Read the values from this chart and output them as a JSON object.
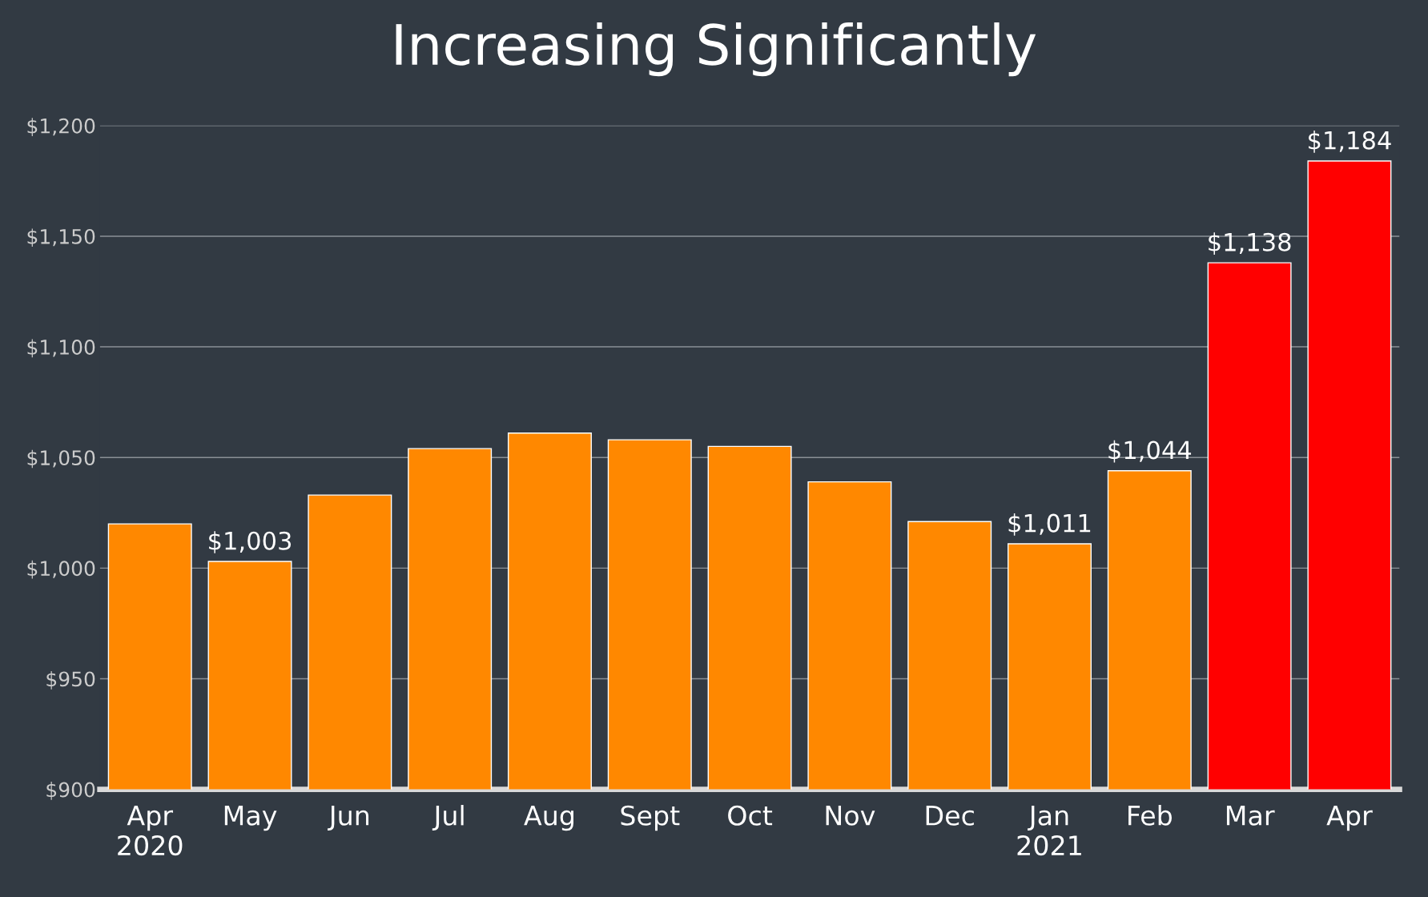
{
  "chart_data": {
    "type": "bar",
    "title": "Increasing Significantly",
    "categories": [
      "Apr\n2020",
      "May",
      "Jun",
      "Jul",
      "Aug",
      "Sept",
      "Oct",
      "Nov",
      "Dec",
      "Jan\n2021",
      "Feb",
      "Mar",
      "Apr"
    ],
    "values": [
      1020,
      1003,
      1033,
      1054,
      1061,
      1058,
      1055,
      1039,
      1021,
      1011,
      1044,
      1138,
      1184
    ],
    "colors": [
      "#ff8800",
      "#ff8800",
      "#ff8800",
      "#ff8800",
      "#ff8800",
      "#ff8800",
      "#ff8800",
      "#ff8800",
      "#ff8800",
      "#ff8800",
      "#ff8800",
      "#ff0000",
      "#ff0000"
    ],
    "value_labels": [
      null,
      "$1,003",
      null,
      null,
      null,
      null,
      null,
      null,
      null,
      "$1,011",
      "$1,044",
      "$1,138",
      "$1,184"
    ],
    "ylim": [
      900,
      1200
    ],
    "yticks": [
      {
        "value": 900,
        "label": "$900"
      },
      {
        "value": 950,
        "label": "$950"
      },
      {
        "value": 1000,
        "label": "$1,000"
      },
      {
        "value": 1050,
        "label": "$1,050"
      },
      {
        "value": 1100,
        "label": "$1,100"
      },
      {
        "value": 1150,
        "label": "$1,150"
      },
      {
        "value": 1200,
        "label": "$1,200"
      }
    ],
    "grid": "y"
  }
}
